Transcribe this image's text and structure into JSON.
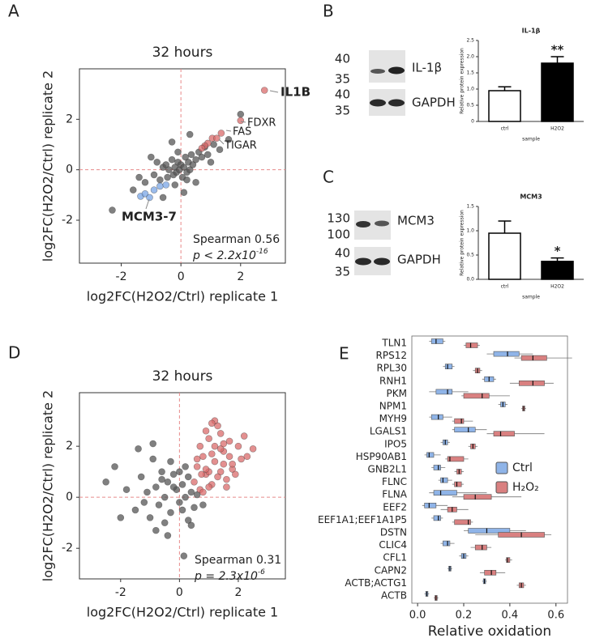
{
  "chart_data": [
    {
      "panel": "A",
      "type": "scatter",
      "title": "32 hours",
      "xlabel": "log2FC(H2O2/Ctrl) replicate 1",
      "ylabel": "log2FC(H2O2/Ctrl) replicate 2",
      "xlim": [
        -3.4,
        3.5
      ],
      "ylim": [
        -3.7,
        4
      ],
      "xticks": [
        -2,
        0,
        2
      ],
      "yticks": [
        -2,
        0,
        2
      ],
      "refline_color": "#e88a8a",
      "series": [
        {
          "color": "#555555",
          "x": [
            -2.3,
            -1.6,
            -1.4,
            -1.2,
            -1.0,
            -0.9,
            -0.8,
            -0.7,
            -0.6,
            -0.5,
            -0.45,
            -0.4,
            -0.3,
            -0.25,
            -0.2,
            -0.15,
            -0.1,
            -0.05,
            0,
            0.05,
            0.1,
            0.15,
            0.2,
            0.25,
            0.3,
            0.35,
            0.4,
            0.5,
            0.6,
            0.7,
            0.8,
            0.9,
            1.0,
            1.1,
            1.3,
            1.6,
            -0.3,
            0.1,
            -0.2,
            0.5,
            -0.6,
            0.3,
            2.0,
            -0.1,
            0.2
          ],
          "y": [
            -1.6,
            -0.8,
            -0.3,
            -0.5,
            0.5,
            -0.2,
            0.3,
            -0.4,
            0.1,
            0.2,
            -0.3,
            0.0,
            0.4,
            -0.2,
            0.1,
            -0.1,
            0.3,
            0.0,
            0.2,
            -0.3,
            0.1,
            0.5,
            -0.1,
            0.3,
            0.0,
            0.6,
            0.2,
            0.4,
            0.7,
            0.5,
            0.9,
            0.6,
            0.3,
            1.0,
            0.8,
            1.2,
            1.1,
            -0.9,
            -0.6,
            -0.5,
            -1.1,
            1.4,
            2.2,
            0.7,
            -0.4
          ]
        },
        {
          "color": "#d96b6b",
          "x": [
            2.8,
            2.0,
            1.35,
            1.05,
            0.9,
            0.8,
            0.7,
            1.2
          ],
          "y": [
            3.15,
            1.95,
            1.45,
            1.25,
            1.05,
            0.95,
            0.85,
            1.25
          ]
        },
        {
          "color": "#7aa6e6",
          "x": [
            -1.35,
            -1.2,
            -1.05,
            -0.9,
            -0.7,
            -0.5
          ],
          "y": [
            -1.05,
            -0.95,
            -1.1,
            -0.8,
            -0.65,
            -0.6
          ]
        }
      ],
      "annotations": [
        "IL1B",
        "FDXR",
        "FAS",
        "TIGAR",
        "MCM3-7"
      ],
      "stats": [
        "Spearman 0.56",
        {
          "text": "p < 2.2x10",
          "sup": "-16"
        }
      ]
    },
    {
      "panel": "B",
      "type": "bar",
      "title": "IL-1β",
      "ylabel": "Relative protein expression",
      "xlabel": "sample",
      "categories": [
        "ctrl",
        "H2O2"
      ],
      "values": [
        0.95,
        1.8
      ],
      "errors": [
        0.12,
        0.2
      ],
      "colors": [
        "#ffffff",
        "#000000"
      ],
      "significance": "**",
      "ylim": [
        0,
        2.5
      ],
      "yticks": [
        0,
        0.5,
        {
          "value": 1,
          "label": "1.0"
        },
        1.5,
        {
          "value": 2,
          "label": "2.0"
        },
        2.5
      ],
      "blot": {
        "markers": [
          40,
          35,
          40,
          35
        ],
        "bands": [
          "IL-1β",
          "GAPDH"
        ]
      }
    },
    {
      "panel": "C",
      "type": "bar",
      "title": "MCM3",
      "ylabel": "Relative protein expression",
      "xlabel": "sample",
      "categories": [
        "ctrl",
        "H2O2"
      ],
      "values": [
        0.95,
        0.37
      ],
      "errors": [
        0.25,
        0.07
      ],
      "colors": [
        "#ffffff",
        "#000000"
      ],
      "significance": "*",
      "ylim": [
        0,
        1.5
      ],
      "yticks": [
        {
          "value": 0,
          "label": "0.0"
        },
        0.5,
        {
          "value": 1,
          "label": "1.0"
        },
        1.5
      ],
      "blot": {
        "markers": [
          130,
          100,
          40,
          35
        ],
        "bands": [
          "MCM3",
          "GAPDH"
        ]
      }
    },
    {
      "panel": "D",
      "type": "scatter",
      "title": "32 hours",
      "xlabel": "log2FC(H2O2/Ctrl) replicate 1",
      "ylabel": "log2FC(H2O2/Ctrl) replicate 2",
      "xlim": [
        -3.4,
        3.6
      ],
      "ylim": [
        -3.2,
        4.1
      ],
      "xticks": [
        -2,
        0,
        2
      ],
      "yticks": [
        -2,
        0,
        2
      ],
      "refline_color": "#e88a8a",
      "series": [
        {
          "color": "#555555",
          "x": [
            -2.5,
            -2.2,
            -1.8,
            -1.5,
            -1.3,
            -1.1,
            -1.0,
            -0.9,
            -0.8,
            -0.7,
            -0.6,
            -0.5,
            -0.4,
            -0.3,
            -0.2,
            -0.1,
            0,
            0.1,
            0.2,
            0.3,
            0.4,
            0.5,
            -0.8,
            -0.4,
            0.0,
            0.2,
            -1.2,
            -0.6,
            0.3,
            0.1,
            -0.3,
            0.6,
            0.4,
            -2.0,
            -0.2,
            0.8,
            -1.4,
            -0.5,
            0.15,
            -0.9
          ],
          "y": [
            0.6,
            1.2,
            0.3,
            -0.5,
            0.8,
            0.2,
            -0.8,
            1.5,
            0.4,
            -0.3,
            1.0,
            0.0,
            0.6,
            -0.6,
            0.9,
            0.3,
            -0.2,
            0.5,
            1.2,
            -0.9,
            0.2,
            -0.4,
            -1.3,
            -1.5,
            1.0,
            0.0,
            -0.2,
            0.7,
            0.8,
            -0.5,
            1.4,
            0.1,
            -1.1,
            -0.8,
            0.4,
            -0.3,
            1.9,
            -1.0,
            -2.3,
            2.1
          ]
        },
        {
          "color": "#d96b6b",
          "x": [
            0.5,
            0.6,
            0.7,
            0.8,
            0.9,
            1.0,
            1.1,
            1.2,
            1.3,
            1.4,
            1.5,
            1.6,
            1.7,
            1.8,
            2.0,
            2.2,
            2.5,
            0.7,
            0.9,
            1.1,
            1.3,
            1.5,
            1.7,
            1.9,
            0.8,
            1.0,
            1.2,
            1.4,
            1.6,
            2.1,
            0.6,
            1.0,
            1.4,
            1.8,
            0.9,
            1.2,
            1.5,
            1.1,
            2.3,
            0.75
          ],
          "y": [
            0.6,
            1.2,
            0.3,
            1.6,
            0.9,
            2.3,
            0.5,
            1.4,
            2.8,
            1.0,
            1.8,
            0.4,
            2.2,
            1.1,
            2.0,
            2.4,
            1.9,
            2.0,
            2.6,
            1.7,
            0.8,
            1.3,
            1.6,
            0.9,
            0.2,
            1.0,
            3.0,
            2.5,
            0.7,
            1.5,
            1.5,
            0.4,
            1.9,
            1.3,
            1.1,
            2.0,
            2.1,
            2.9,
            1.6,
            0.9
          ]
        }
      ],
      "stats": [
        "Spearman 0.31",
        {
          "text": "p = 2.3x10",
          "sup": "-6"
        }
      ]
    },
    {
      "panel": "E",
      "type": "box",
      "xlabel": "Relative oxidation",
      "categories": [
        "TLN1",
        "RPS12",
        "RPL30",
        "RNH1",
        "PKM",
        "NPM1",
        "MYH9",
        "LGALS1",
        "IPO5",
        "HSP90AB1",
        "GNB2L1",
        "FLNC",
        "FLNA",
        "EEF2",
        "EEF1A1;EEF1A1P5",
        "DSTN",
        "CLIC4",
        "CFL1",
        "CAPN2",
        "ACTB;ACTG1",
        "ACTB"
      ],
      "xlim": [
        -0.025,
        0.65
      ],
      "xticks": [
        {
          "value": 0,
          "label": "0.0"
        },
        0.2,
        0.4,
        0.6
      ],
      "series": [
        {
          "name": "Ctrl",
          "color": "#8fb4e8",
          "values": [
            [
              0.05,
              0.06,
              0.08,
              0.11,
              0.12
            ],
            [
              0.3,
              0.33,
              0.39,
              0.44,
              0.5
            ],
            [
              0.11,
              0.12,
              0.13,
              0.15,
              0.16
            ],
            [
              0.28,
              0.29,
              0.31,
              0.33,
              0.34
            ],
            [
              0.05,
              0.08,
              0.13,
              0.15,
              0.22
            ],
            [
              0.35,
              0.36,
              0.37,
              0.38,
              0.39
            ],
            [
              0.05,
              0.06,
              0.09,
              0.11,
              0.15
            ],
            [
              0.15,
              0.16,
              0.22,
              0.25,
              0.3
            ],
            [
              0.1,
              0.11,
              0.12,
              0.13,
              0.14
            ],
            [
              0.03,
              0.04,
              0.05,
              0.07,
              0.1
            ],
            [
              0.06,
              0.07,
              0.09,
              0.1,
              0.12
            ],
            [
              0.09,
              0.1,
              0.11,
              0.13,
              0.15
            ],
            [
              0.05,
              0.07,
              0.1,
              0.17,
              0.3
            ],
            [
              0.02,
              0.03,
              0.05,
              0.08,
              0.13
            ],
            [
              0.06,
              0.07,
              0.09,
              0.1,
              0.11
            ],
            [
              0.2,
              0.22,
              0.3,
              0.4,
              0.47
            ],
            [
              0.1,
              0.11,
              0.13,
              0.14,
              0.16
            ],
            [
              0.18,
              0.19,
              0.2,
              0.21,
              0.22
            ],
            [
              0.13,
              0.135,
              0.14,
              0.145,
              0.15
            ],
            [
              0.28,
              0.285,
              0.29,
              0.295,
              0.3
            ],
            [
              0.03,
              0.035,
              0.04,
              0.045,
              0.05
            ]
          ]
        },
        {
          "name": "H₂O₂",
          "color": "#d98080",
          "values": [
            [
              0.2,
              0.21,
              0.23,
              0.26,
              0.27
            ],
            [
              0.42,
              0.45,
              0.5,
              0.56,
              0.67
            ],
            [
              0.24,
              0.25,
              0.26,
              0.27,
              0.28
            ],
            [
              0.4,
              0.44,
              0.5,
              0.55,
              0.59
            ],
            [
              0.19,
              0.2,
              0.28,
              0.31,
              0.4
            ],
            [
              0.45,
              0.455,
              0.46,
              0.465,
              0.47
            ],
            [
              0.15,
              0.16,
              0.19,
              0.2,
              0.24
            ],
            [
              0.3,
              0.33,
              0.36,
              0.42,
              0.55
            ],
            [
              0.22,
              0.23,
              0.24,
              0.25,
              0.26
            ],
            [
              0.12,
              0.13,
              0.14,
              0.2,
              0.22
            ],
            [
              0.16,
              0.17,
              0.18,
              0.19,
              0.2
            ],
            [
              0.15,
              0.16,
              0.17,
              0.19,
              0.2
            ],
            [
              0.15,
              0.2,
              0.25,
              0.32,
              0.45
            ],
            [
              0.1,
              0.13,
              0.15,
              0.17,
              0.22
            ],
            [
              0.15,
              0.16,
              0.22,
              0.23,
              0.24
            ],
            [
              0.25,
              0.35,
              0.45,
              0.55,
              0.58
            ],
            [
              0.23,
              0.25,
              0.28,
              0.3,
              0.32
            ],
            [
              0.38,
              0.385,
              0.39,
              0.4,
              0.41
            ],
            [
              0.27,
              0.29,
              0.32,
              0.34,
              0.38
            ],
            [
              0.43,
              0.44,
              0.45,
              0.46,
              0.47
            ],
            [
              0.07,
              0.075,
              0.08,
              0.085,
              0.09
            ]
          ]
        }
      ]
    }
  ]
}
